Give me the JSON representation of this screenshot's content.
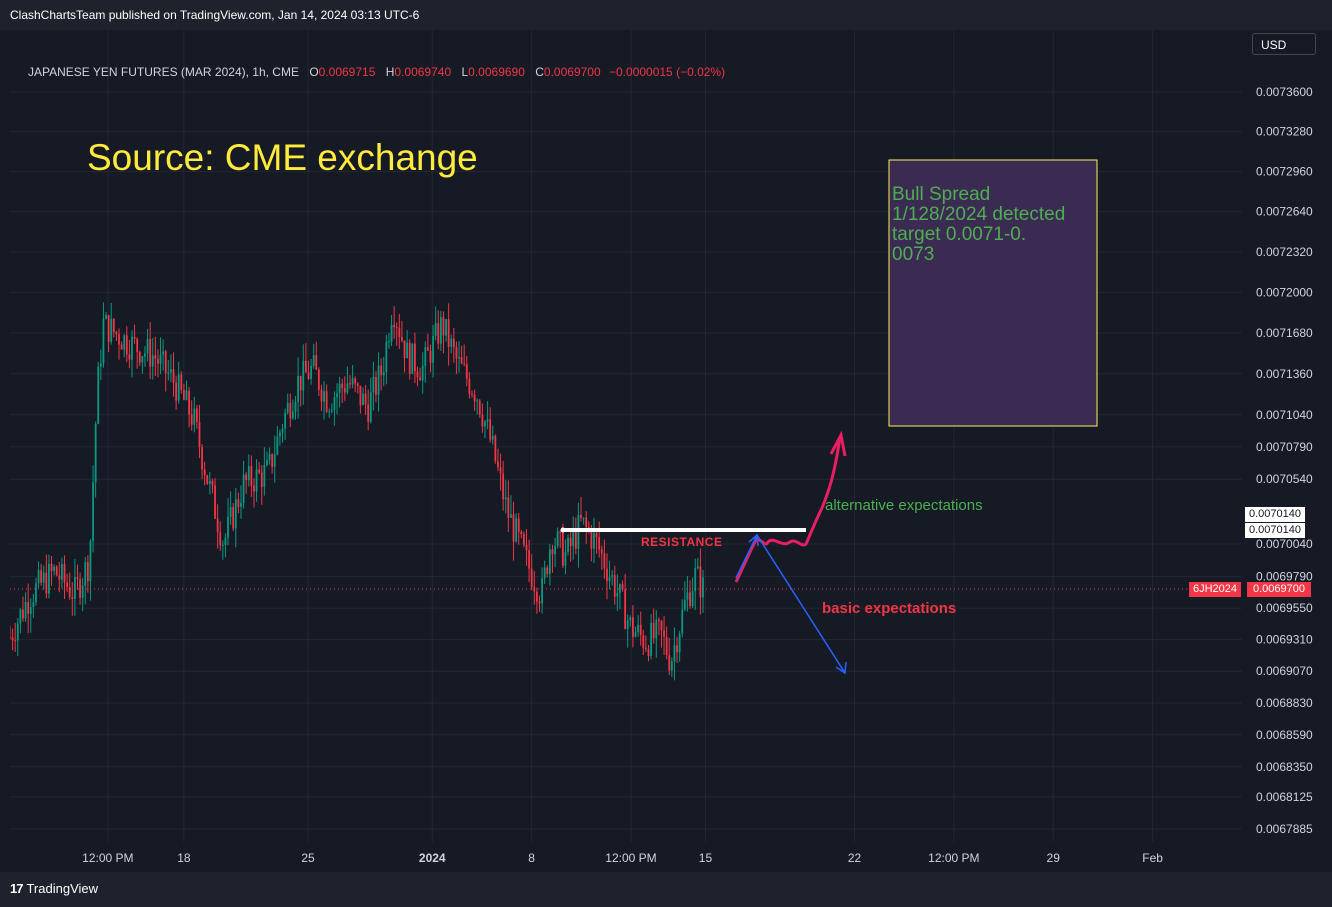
{
  "header": {
    "publisher_text": "ClashChartsTeam published on TradingView.com, Jan 14, 2024 03:13 UTC-6",
    "symbol_title": "JAPANESE YEN FUTURES (MAR 2024), 1h, CME",
    "open_label": "O",
    "open_value": "0.0069715",
    "high_label": "H",
    "high_value": "0.0069740",
    "low_label": "L",
    "low_value": "0.0069690",
    "close_label": "C",
    "close_value": "0.0069700",
    "change_value": "−0.0000015 (−0.02%)",
    "currency_button": "USD"
  },
  "colors": {
    "background": "#161a25",
    "grid": "#232733",
    "up_candle": "#089981",
    "down_candle": "#f23645",
    "source_text": "#ffeb3b",
    "box_fill": "#3b2a52",
    "box_border": "#ffee58",
    "note_green": "#4caf50",
    "resistance": "#ffffff",
    "resistance_label": "#f23645",
    "alt_arrow": "#e91e63",
    "basic_arrow": "#2962ff"
  },
  "annotations": {
    "source": "Source: CME exchange",
    "bull_spread_lines": [
      "Bull Spread",
      "1/128/2024 detected",
      "target 0.0071-0.",
      "0073"
    ],
    "resistance": "RESISTANCE",
    "alternative": "alternative  expectations",
    "basic": "basic expectations"
  },
  "price_tags": {
    "resistance_top": "0.0070140",
    "resistance_bottom": "0.0070140",
    "symbol": "6JH2024",
    "last_price": "0.0069700"
  },
  "footer": {
    "logo_text": "TradingView"
  },
  "chart_data": {
    "type": "candlestick",
    "title": "JAPANESE YEN FUTURES (MAR 2024), 1h, CME",
    "y_tick_labels": [
      "0.0073600",
      "0.0073280",
      "0.0072960",
      "0.0072640",
      "0.0072320",
      "0.0072000",
      "0.0071680",
      "0.0071360",
      "0.0071040",
      "0.0070790",
      "0.0070540",
      "0.0070040",
      "0.0069790",
      "0.0069550",
      "0.0069310",
      "0.0069070",
      "0.0068830",
      "0.0068590",
      "0.0068350",
      "0.0068125",
      "0.0067885"
    ],
    "y_log_scale": true,
    "ylim": [
      0.00677,
      0.00739
    ],
    "x_tick_labels": [
      "12:00 PM",
      "18",
      "25",
      "2024",
      "8",
      "12:00 PM",
      "15",
      "22",
      "12:00 PM",
      "29",
      "Feb"
    ],
    "x_ticks": [
      0.47,
      2.0,
      4.5,
      7.0,
      9.0,
      11.0,
      12.5,
      15.5,
      17.5,
      19.5,
      21.5
    ],
    "x_range": [
      -1.5,
      23.3
    ],
    "grid": true,
    "key_points": [
      {
        "x": -1.5,
        "price": 0.006933
      },
      {
        "x": -1.1,
        "price": 0.006965
      },
      {
        "x": -0.6,
        "price": 0.006983
      },
      {
        "x": -0.2,
        "price": 0.006966
      },
      {
        "x": 0.1,
        "price": 0.006991
      },
      {
        "x": 0.25,
        "price": 0.00712
      },
      {
        "x": 0.38,
        "price": 0.007175
      },
      {
        "x": 0.9,
        "price": 0.00716
      },
      {
        "x": 1.4,
        "price": 0.00715
      },
      {
        "x": 1.8,
        "price": 0.00713
      },
      {
        "x": 2.2,
        "price": 0.0071
      },
      {
        "x": 2.5,
        "price": 0.00705
      },
      {
        "x": 2.8,
        "price": 0.007005
      },
      {
        "x": 3.2,
        "price": 0.00705
      },
      {
        "x": 3.7,
        "price": 0.00706
      },
      {
        "x": 4.0,
        "price": 0.0071
      },
      {
        "x": 4.3,
        "price": 0.00713
      },
      {
        "x": 4.6,
        "price": 0.00714
      },
      {
        "x": 4.9,
        "price": 0.007115
      },
      {
        "x": 5.3,
        "price": 0.00713
      },
      {
        "x": 5.7,
        "price": 0.00711
      },
      {
        "x": 6.0,
        "price": 0.00714
      },
      {
        "x": 6.2,
        "price": 0.00719
      },
      {
        "x": 6.5,
        "price": 0.00715
      },
      {
        "x": 6.8,
        "price": 0.00714
      },
      {
        "x": 7.2,
        "price": 0.007175
      },
      {
        "x": 7.5,
        "price": 0.007145
      },
      {
        "x": 7.9,
        "price": 0.00712
      },
      {
        "x": 8.2,
        "price": 0.00708
      },
      {
        "x": 8.5,
        "price": 0.00703
      },
      {
        "x": 8.9,
        "price": 0.00699
      },
      {
        "x": 9.2,
        "price": 0.006965
      },
      {
        "x": 9.4,
        "price": 0.00701
      },
      {
        "x": 9.7,
        "price": 0.006995
      },
      {
        "x": 10.0,
        "price": 0.00702
      },
      {
        "x": 10.3,
        "price": 0.007005
      },
      {
        "x": 10.7,
        "price": 0.00697
      },
      {
        "x": 11.0,
        "price": 0.00694
      },
      {
        "x": 11.3,
        "price": 0.00693
      },
      {
        "x": 11.6,
        "price": 0.006935
      },
      {
        "x": 11.8,
        "price": 0.006915
      },
      {
        "x": 12.1,
        "price": 0.00696
      },
      {
        "x": 12.3,
        "price": 0.00698
      },
      {
        "x": 12.45,
        "price": 0.00697
      }
    ],
    "resistance_level": 0.007014,
    "last_price": 0.00697
  }
}
